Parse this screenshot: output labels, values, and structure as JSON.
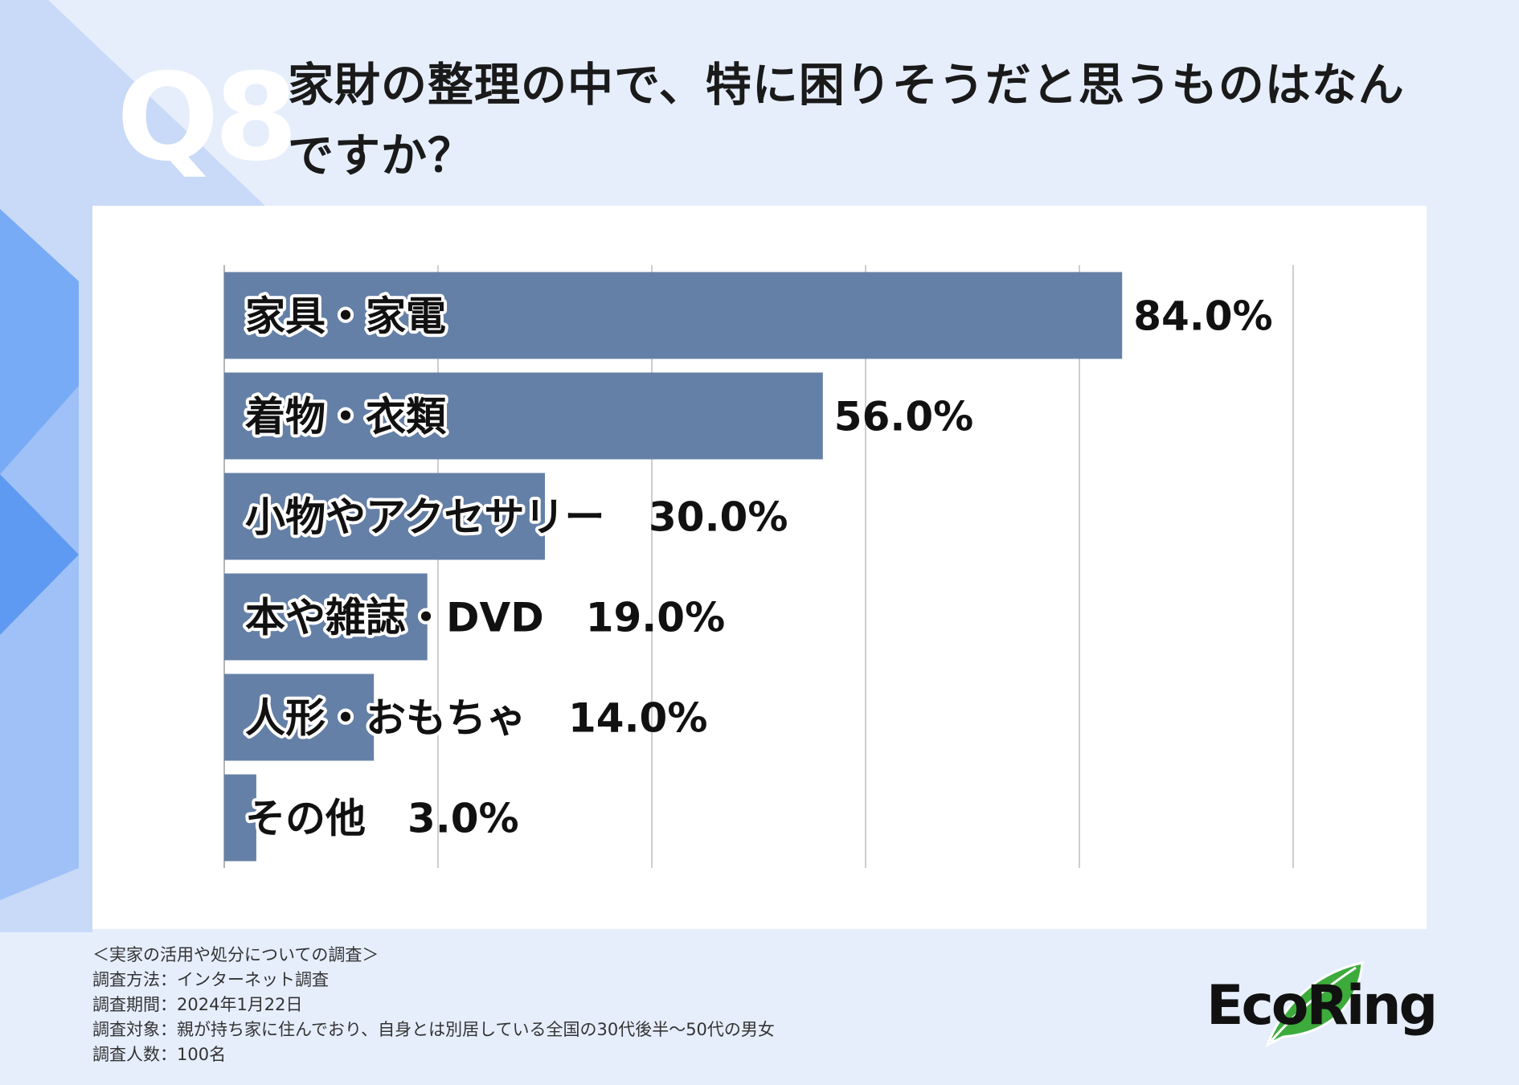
{
  "header": {
    "q_number": "Q8",
    "title": "家財の整理の中で、特に困りそうだと思うものはなんですか？"
  },
  "colors": {
    "background": "#e6eefc",
    "bar": "#6580a7",
    "decor_light": "#c8daf8",
    "decor_mid": "#9fc1f7",
    "decor_dark": "#5f9af2",
    "leaf": "#3cab3c"
  },
  "chart_data": {
    "type": "bar",
    "orientation": "horizontal",
    "categories": [
      "家具・家電",
      "着物・衣類",
      "小物やアクセサリー",
      "本や雑誌・DVD",
      "人形・おもちゃ",
      "その他"
    ],
    "values": [
      84.0,
      56.0,
      30.0,
      19.0,
      14.0,
      3.0
    ],
    "value_labels": [
      "84.0%",
      "56.0%",
      "30.0%",
      "19.0%",
      "14.0%",
      "3.0%"
    ],
    "xlim": [
      0,
      100
    ],
    "grid": true,
    "title": "",
    "xlabel": "",
    "ylabel": ""
  },
  "footnote": {
    "lines": [
      "＜実家の活用や処分についての調査＞",
      "調査方法：インターネット調査",
      "調査期間：2024年1月22日",
      "調査対象：親が持ち家に住んでおり、自身とは別居している全国の30代後半〜50代の男女",
      "調査人数：100名"
    ]
  },
  "logo": {
    "text": "EcoRing"
  }
}
